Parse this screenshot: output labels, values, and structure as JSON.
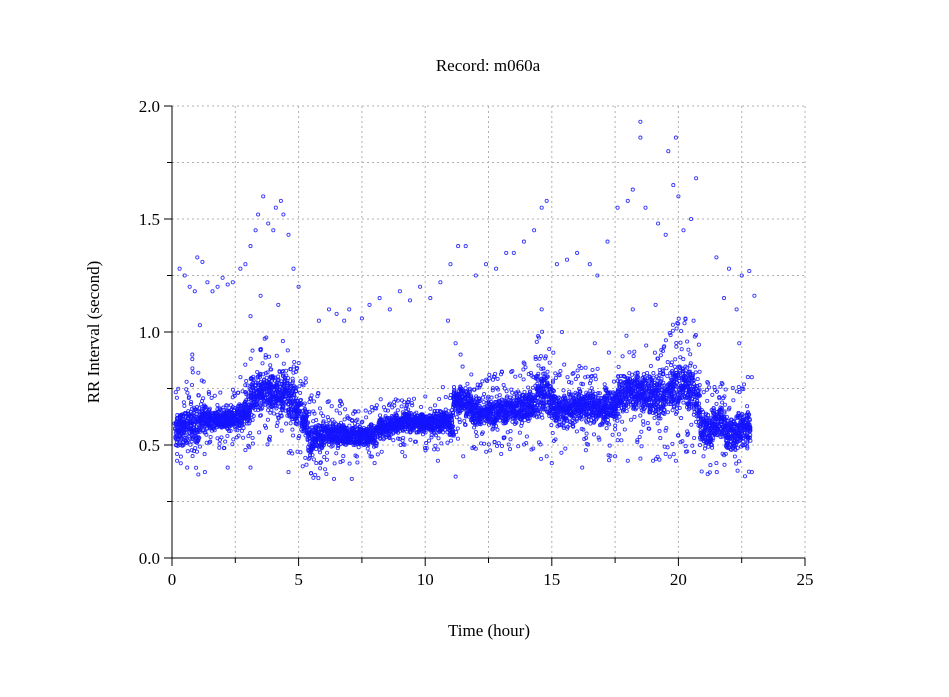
{
  "chart_data": {
    "type": "scatter",
    "title": "Record:  m060a",
    "xlabel": "Time (hour)",
    "ylabel": "RR Interval (second)",
    "xlim": [
      0,
      25
    ],
    "ylim": [
      0,
      2.0
    ],
    "x_ticks": [
      0,
      5,
      10,
      15,
      20,
      25
    ],
    "x_tick_labels": [
      "0",
      "5",
      "10",
      "15",
      "20",
      "25"
    ],
    "x_minor_step": 2.5,
    "y_ticks": [
      0,
      0.5,
      1.0,
      1.5,
      2.0
    ],
    "y_tick_labels": [
      "0.0",
      "0.5",
      "1.0",
      "1.5",
      "2.0"
    ],
    "y_minor_step": 0.25,
    "grid": true,
    "marker": "open-circle",
    "color": "#1414ff",
    "dense_band_note_fields": [
      "hour_start",
      "center_seconds",
      "half_width_seconds"
    ],
    "dense_band": [
      [
        0.1,
        0.57,
        0.08
      ],
      [
        0.35,
        0.58,
        0.08
      ],
      [
        0.6,
        0.6,
        0.1
      ],
      [
        0.85,
        0.58,
        0.1
      ],
      [
        1.1,
        0.62,
        0.07
      ],
      [
        1.35,
        0.61,
        0.05
      ],
      [
        1.6,
        0.61,
        0.05
      ],
      [
        1.85,
        0.61,
        0.05
      ],
      [
        2.1,
        0.61,
        0.05
      ],
      [
        2.35,
        0.62,
        0.05
      ],
      [
        2.6,
        0.63,
        0.07
      ],
      [
        2.85,
        0.66,
        0.08
      ],
      [
        3.1,
        0.72,
        0.1
      ],
      [
        3.35,
        0.73,
        0.1
      ],
      [
        3.6,
        0.74,
        0.1
      ],
      [
        3.85,
        0.73,
        0.1
      ],
      [
        4.1,
        0.72,
        0.1
      ],
      [
        4.35,
        0.73,
        0.1
      ],
      [
        4.6,
        0.7,
        0.1
      ],
      [
        4.85,
        0.66,
        0.1
      ],
      [
        5.1,
        0.6,
        0.08
      ],
      [
        5.35,
        0.52,
        0.08
      ],
      [
        5.6,
        0.53,
        0.08
      ],
      [
        5.85,
        0.54,
        0.07
      ],
      [
        6.1,
        0.55,
        0.06
      ],
      [
        6.35,
        0.55,
        0.06
      ],
      [
        6.6,
        0.55,
        0.06
      ],
      [
        6.85,
        0.54,
        0.05
      ],
      [
        7.1,
        0.54,
        0.05
      ],
      [
        7.35,
        0.54,
        0.05
      ],
      [
        7.6,
        0.54,
        0.05
      ],
      [
        7.85,
        0.55,
        0.06
      ],
      [
        8.1,
        0.58,
        0.05
      ],
      [
        8.35,
        0.58,
        0.05
      ],
      [
        8.6,
        0.59,
        0.05
      ],
      [
        8.85,
        0.59,
        0.05
      ],
      [
        9.1,
        0.6,
        0.05
      ],
      [
        9.35,
        0.6,
        0.05
      ],
      [
        9.6,
        0.6,
        0.05
      ],
      [
        9.85,
        0.6,
        0.05
      ],
      [
        10.1,
        0.6,
        0.06
      ],
      [
        10.35,
        0.6,
        0.06
      ],
      [
        10.6,
        0.61,
        0.06
      ],
      [
        10.85,
        0.6,
        0.07
      ],
      [
        11.1,
        0.7,
        0.07
      ],
      [
        11.35,
        0.7,
        0.07
      ],
      [
        11.6,
        0.68,
        0.07
      ],
      [
        11.85,
        0.65,
        0.07
      ],
      [
        12.1,
        0.64,
        0.07
      ],
      [
        12.35,
        0.64,
        0.07
      ],
      [
        12.6,
        0.64,
        0.07
      ],
      [
        12.85,
        0.65,
        0.07
      ],
      [
        13.1,
        0.65,
        0.07
      ],
      [
        13.35,
        0.66,
        0.07
      ],
      [
        13.6,
        0.67,
        0.08
      ],
      [
        13.85,
        0.67,
        0.08
      ],
      [
        14.1,
        0.68,
        0.08
      ],
      [
        14.35,
        0.72,
        0.12
      ],
      [
        14.6,
        0.74,
        0.12
      ],
      [
        14.85,
        0.7,
        0.1
      ],
      [
        15.1,
        0.66,
        0.08
      ],
      [
        15.35,
        0.66,
        0.08
      ],
      [
        15.6,
        0.66,
        0.08
      ],
      [
        15.85,
        0.67,
        0.08
      ],
      [
        16.1,
        0.67,
        0.08
      ],
      [
        16.35,
        0.66,
        0.08
      ],
      [
        16.6,
        0.67,
        0.08
      ],
      [
        16.85,
        0.66,
        0.08
      ],
      [
        17.1,
        0.68,
        0.1
      ],
      [
        17.35,
        0.68,
        0.1
      ],
      [
        17.6,
        0.72,
        0.1
      ],
      [
        17.85,
        0.74,
        0.1
      ],
      [
        18.1,
        0.74,
        0.1
      ],
      [
        18.35,
        0.74,
        0.1
      ],
      [
        18.6,
        0.73,
        0.1
      ],
      [
        18.85,
        0.72,
        0.1
      ],
      [
        19.1,
        0.72,
        0.12
      ],
      [
        19.35,
        0.72,
        0.12
      ],
      [
        19.6,
        0.74,
        0.12
      ],
      [
        19.85,
        0.76,
        0.12
      ],
      [
        20.1,
        0.76,
        0.12
      ],
      [
        20.35,
        0.75,
        0.12
      ],
      [
        20.6,
        0.7,
        0.12
      ],
      [
        20.85,
        0.58,
        0.09
      ],
      [
        21.1,
        0.56,
        0.09
      ],
      [
        21.35,
        0.6,
        0.09
      ],
      [
        21.6,
        0.6,
        0.08
      ],
      [
        21.85,
        0.55,
        0.09
      ],
      [
        22.1,
        0.55,
        0.09
      ],
      [
        22.35,
        0.58,
        0.09
      ],
      [
        22.6,
        0.58,
        0.09
      ]
    ],
    "outliers": [
      [
        0.3,
        1.28
      ],
      [
        0.5,
        1.25
      ],
      [
        0.7,
        1.2
      ],
      [
        0.9,
        1.18
      ],
      [
        1.0,
        1.33
      ],
      [
        1.2,
        1.31
      ],
      [
        1.4,
        1.22
      ],
      [
        1.6,
        1.18
      ],
      [
        1.8,
        1.2
      ],
      [
        2.0,
        1.24
      ],
      [
        2.2,
        1.21
      ],
      [
        2.4,
        1.22
      ],
      [
        2.7,
        1.28
      ],
      [
        2.9,
        1.3
      ],
      [
        3.1,
        1.38
      ],
      [
        3.3,
        1.45
      ],
      [
        3.4,
        1.52
      ],
      [
        3.6,
        1.6
      ],
      [
        3.8,
        1.48
      ],
      [
        4.0,
        1.45
      ],
      [
        4.1,
        1.55
      ],
      [
        4.3,
        1.58
      ],
      [
        4.4,
        1.52
      ],
      [
        4.6,
        1.43
      ],
      [
        4.8,
        1.28
      ],
      [
        5.0,
        1.2
      ],
      [
        4.2,
        1.12
      ],
      [
        3.1,
        1.07
      ],
      [
        3.5,
        1.16
      ],
      [
        1.1,
        1.03
      ],
      [
        0.8,
        0.9
      ],
      [
        5.8,
        1.05
      ],
      [
        6.2,
        1.1
      ],
      [
        6.5,
        1.08
      ],
      [
        6.8,
        1.05
      ],
      [
        7.0,
        1.1
      ],
      [
        7.5,
        1.06
      ],
      [
        7.8,
        1.12
      ],
      [
        8.2,
        1.15
      ],
      [
        8.6,
        1.1
      ],
      [
        9.0,
        1.18
      ],
      [
        9.4,
        1.14
      ],
      [
        9.8,
        1.2
      ],
      [
        10.2,
        1.15
      ],
      [
        10.6,
        1.22
      ],
      [
        11.0,
        1.3
      ],
      [
        11.3,
        1.38
      ],
      [
        11.6,
        1.38
      ],
      [
        12.0,
        1.25
      ],
      [
        12.4,
        1.3
      ],
      [
        12.8,
        1.28
      ],
      [
        13.2,
        1.35
      ],
      [
        13.5,
        1.35
      ],
      [
        13.9,
        1.4
      ],
      [
        14.3,
        1.45
      ],
      [
        14.6,
        1.55
      ],
      [
        14.8,
        1.58
      ],
      [
        15.2,
        1.3
      ],
      [
        15.6,
        1.32
      ],
      [
        16.0,
        1.35
      ],
      [
        16.5,
        1.3
      ],
      [
        16.8,
        1.25
      ],
      [
        17.2,
        1.4
      ],
      [
        17.6,
        1.55
      ],
      [
        18.0,
        1.58
      ],
      [
        18.5,
        1.93
      ],
      [
        18.5,
        1.86
      ],
      [
        18.2,
        1.63
      ],
      [
        18.7,
        1.55
      ],
      [
        19.2,
        1.48
      ],
      [
        19.5,
        1.43
      ],
      [
        19.6,
        1.8
      ],
      [
        19.8,
        1.65
      ],
      [
        19.9,
        1.86
      ],
      [
        20.0,
        1.6
      ],
      [
        20.2,
        1.45
      ],
      [
        20.5,
        1.5
      ],
      [
        20.7,
        1.68
      ],
      [
        21.5,
        1.33
      ],
      [
        22.0,
        1.28
      ],
      [
        22.5,
        1.25
      ],
      [
        22.8,
        1.27
      ],
      [
        23.0,
        1.16
      ],
      [
        22.3,
        1.1
      ],
      [
        21.8,
        1.15
      ],
      [
        0.2,
        0.43
      ],
      [
        0.6,
        0.4
      ],
      [
        1.3,
        0.38
      ],
      [
        2.2,
        0.4
      ],
      [
        3.1,
        0.4
      ],
      [
        4.6,
        0.38
      ],
      [
        5.7,
        0.42
      ],
      [
        6.4,
        0.35
      ],
      [
        7.1,
        0.35
      ],
      [
        8.0,
        0.42
      ],
      [
        9.2,
        0.45
      ],
      [
        10.5,
        0.43
      ],
      [
        11.2,
        0.36
      ],
      [
        11.5,
        0.45
      ],
      [
        13.0,
        0.46
      ],
      [
        14.2,
        0.48
      ],
      [
        14.8,
        0.45
      ],
      [
        15.0,
        0.42
      ],
      [
        16.2,
        0.4
      ],
      [
        17.5,
        0.45
      ],
      [
        18.0,
        0.43
      ],
      [
        18.5,
        0.44
      ],
      [
        19.0,
        0.43
      ],
      [
        19.5,
        0.46
      ],
      [
        19.9,
        0.43
      ],
      [
        20.3,
        0.47
      ],
      [
        21.5,
        0.42
      ],
      [
        22.9,
        0.38
      ],
      [
        0.8,
        0.88
      ],
      [
        2.7,
        0.8
      ],
      [
        4.8,
        0.82
      ],
      [
        10.9,
        1.05
      ],
      [
        11.2,
        0.95
      ],
      [
        11.4,
        0.9
      ],
      [
        14.6,
        1.1
      ],
      [
        15.4,
        1.0
      ],
      [
        16.7,
        0.95
      ],
      [
        18.2,
        1.1
      ],
      [
        19.1,
        1.12
      ],
      [
        20.6,
        1.05
      ],
      [
        22.4,
        0.95
      ],
      [
        22.9,
        0.8
      ]
    ]
  }
}
